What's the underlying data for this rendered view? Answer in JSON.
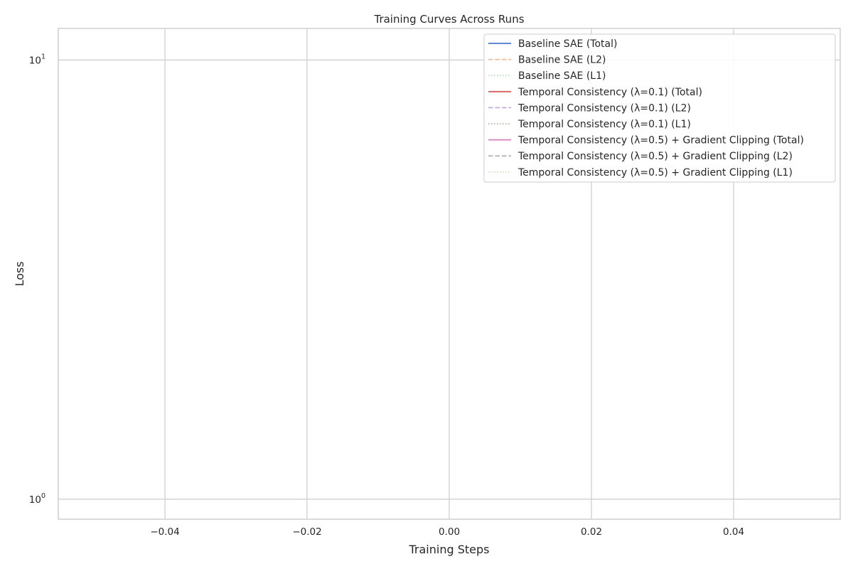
{
  "chart_data": {
    "type": "line",
    "title": "Training Curves Across Runs",
    "xlabel": "Training Steps",
    "ylabel": "Loss",
    "xlim": [
      -0.055,
      0.055
    ],
    "ylim": [
      0.9,
      11.8
    ],
    "yscale": "log",
    "grid": true,
    "legend_position": "top-right",
    "x_ticks": [
      {
        "value": -0.04,
        "label": "−0.04"
      },
      {
        "value": -0.02,
        "label": "−0.02"
      },
      {
        "value": 0.0,
        "label": "0.00"
      },
      {
        "value": 0.02,
        "label": "0.02"
      },
      {
        "value": 0.04,
        "label": "0.04"
      }
    ],
    "y_ticks": [
      {
        "value": 1,
        "base": "10",
        "exp": "0"
      },
      {
        "value": 10,
        "base": "10",
        "exp": "1"
      }
    ],
    "series": [
      {
        "name": "Baseline SAE (Total)",
        "color": "#4878d0",
        "dash": "solid",
        "x": [],
        "y": []
      },
      {
        "name": "Baseline SAE (L2)",
        "color": "#ee854a",
        "dash": "dashed",
        "x": [],
        "y": []
      },
      {
        "name": "Baseline SAE (L1)",
        "color": "#6acc64",
        "dash": "dotted",
        "x": [],
        "y": []
      },
      {
        "name": "Temporal Consistency (λ=0.1) (Total)",
        "color": "#d65f5f",
        "dash": "solid",
        "x": [],
        "y": []
      },
      {
        "name": "Temporal Consistency (λ=0.1) (L2)",
        "color": "#956cb4",
        "dash": "dashed",
        "x": [],
        "y": []
      },
      {
        "name": "Temporal Consistency (λ=0.1) (L1)",
        "color": "#8c613c",
        "dash": "dotted",
        "x": [],
        "y": []
      },
      {
        "name": "Temporal Consistency (λ=0.5) + Gradient Clipping (Total)",
        "color": "#dc7ec0",
        "dash": "solid",
        "x": [],
        "y": []
      },
      {
        "name": "Temporal Consistency (λ=0.5) + Gradient Clipping (L2)",
        "color": "#797979",
        "dash": "dashed",
        "x": [],
        "y": []
      },
      {
        "name": "Temporal Consistency (λ=0.5) + Gradient Clipping (L1)",
        "color": "#d5bb67",
        "dash": "dotted",
        "x": [],
        "y": []
      }
    ]
  }
}
